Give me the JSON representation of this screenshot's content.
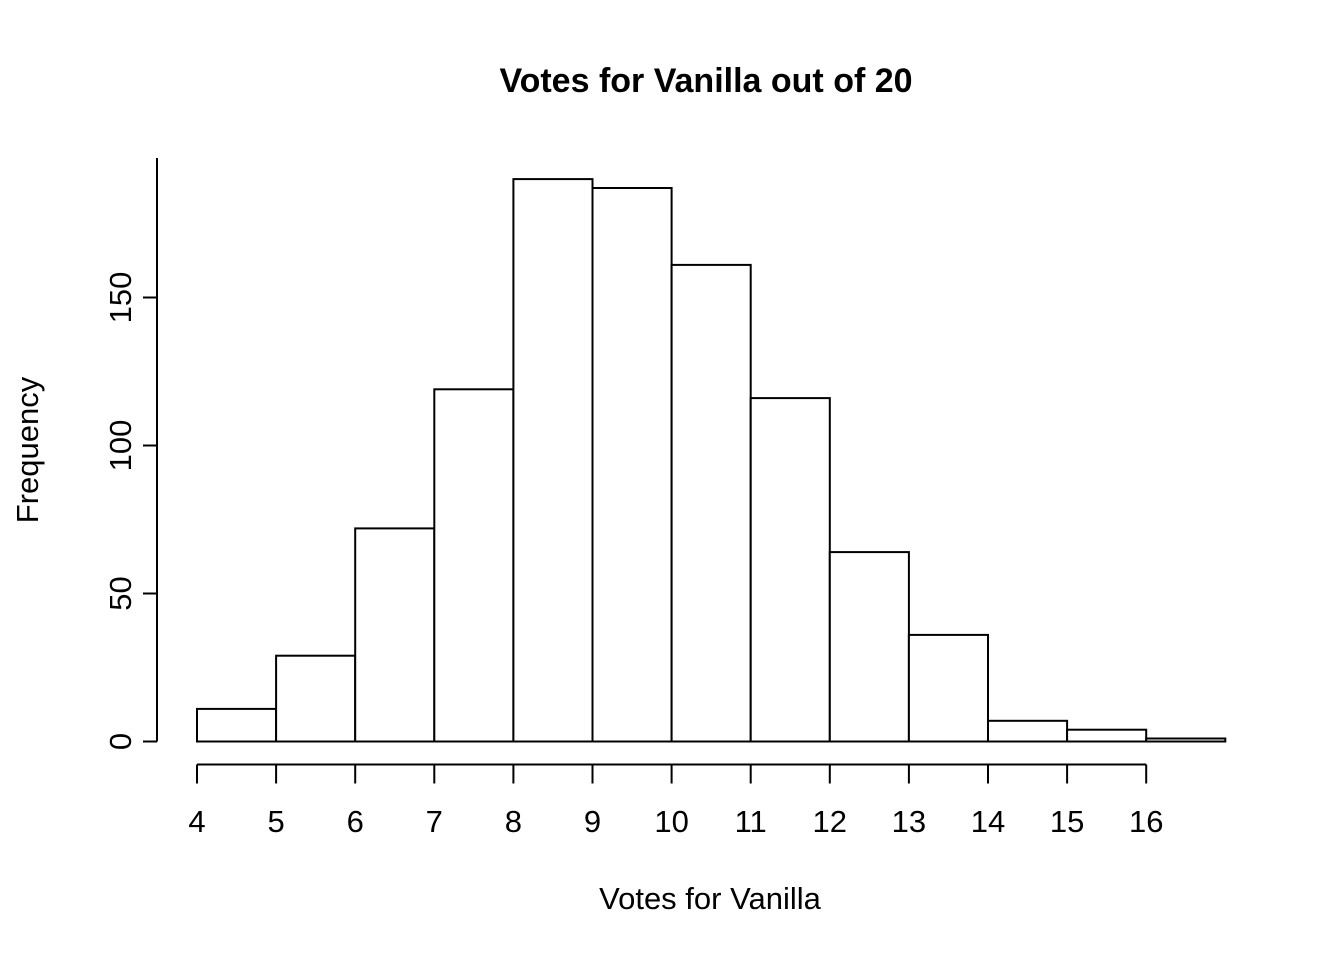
{
  "chart_data": {
    "type": "bar",
    "subtype": "histogram",
    "title": "Votes for Vanilla out of 20",
    "xlabel": "Votes for Vanilla",
    "ylabel": "Frequency",
    "bins": [
      "4-5",
      "5-6",
      "6-7",
      "7-8",
      "8-9",
      "9-10",
      "10-11",
      "11-12",
      "12-13",
      "13-14",
      "14-15",
      "15-16",
      "16-17"
    ],
    "bin_start": 4,
    "bin_width": 1,
    "values": [
      11,
      29,
      72,
      119,
      190,
      187,
      161,
      116,
      64,
      36,
      7,
      4,
      1
    ],
    "x_ticks": [
      4,
      5,
      6,
      7,
      8,
      9,
      10,
      11,
      12,
      13,
      14,
      15,
      16
    ],
    "y_ticks": [
      0,
      50,
      100,
      150
    ],
    "xlim": [
      4,
      17
    ],
    "ylim": [
      0,
      197
    ],
    "grid": false,
    "legend": false,
    "colors": {
      "background": "#ffffff",
      "bar_fill": "#ffffff",
      "bar_stroke": "#000000",
      "axis": "#000000",
      "text": "#000000"
    }
  }
}
